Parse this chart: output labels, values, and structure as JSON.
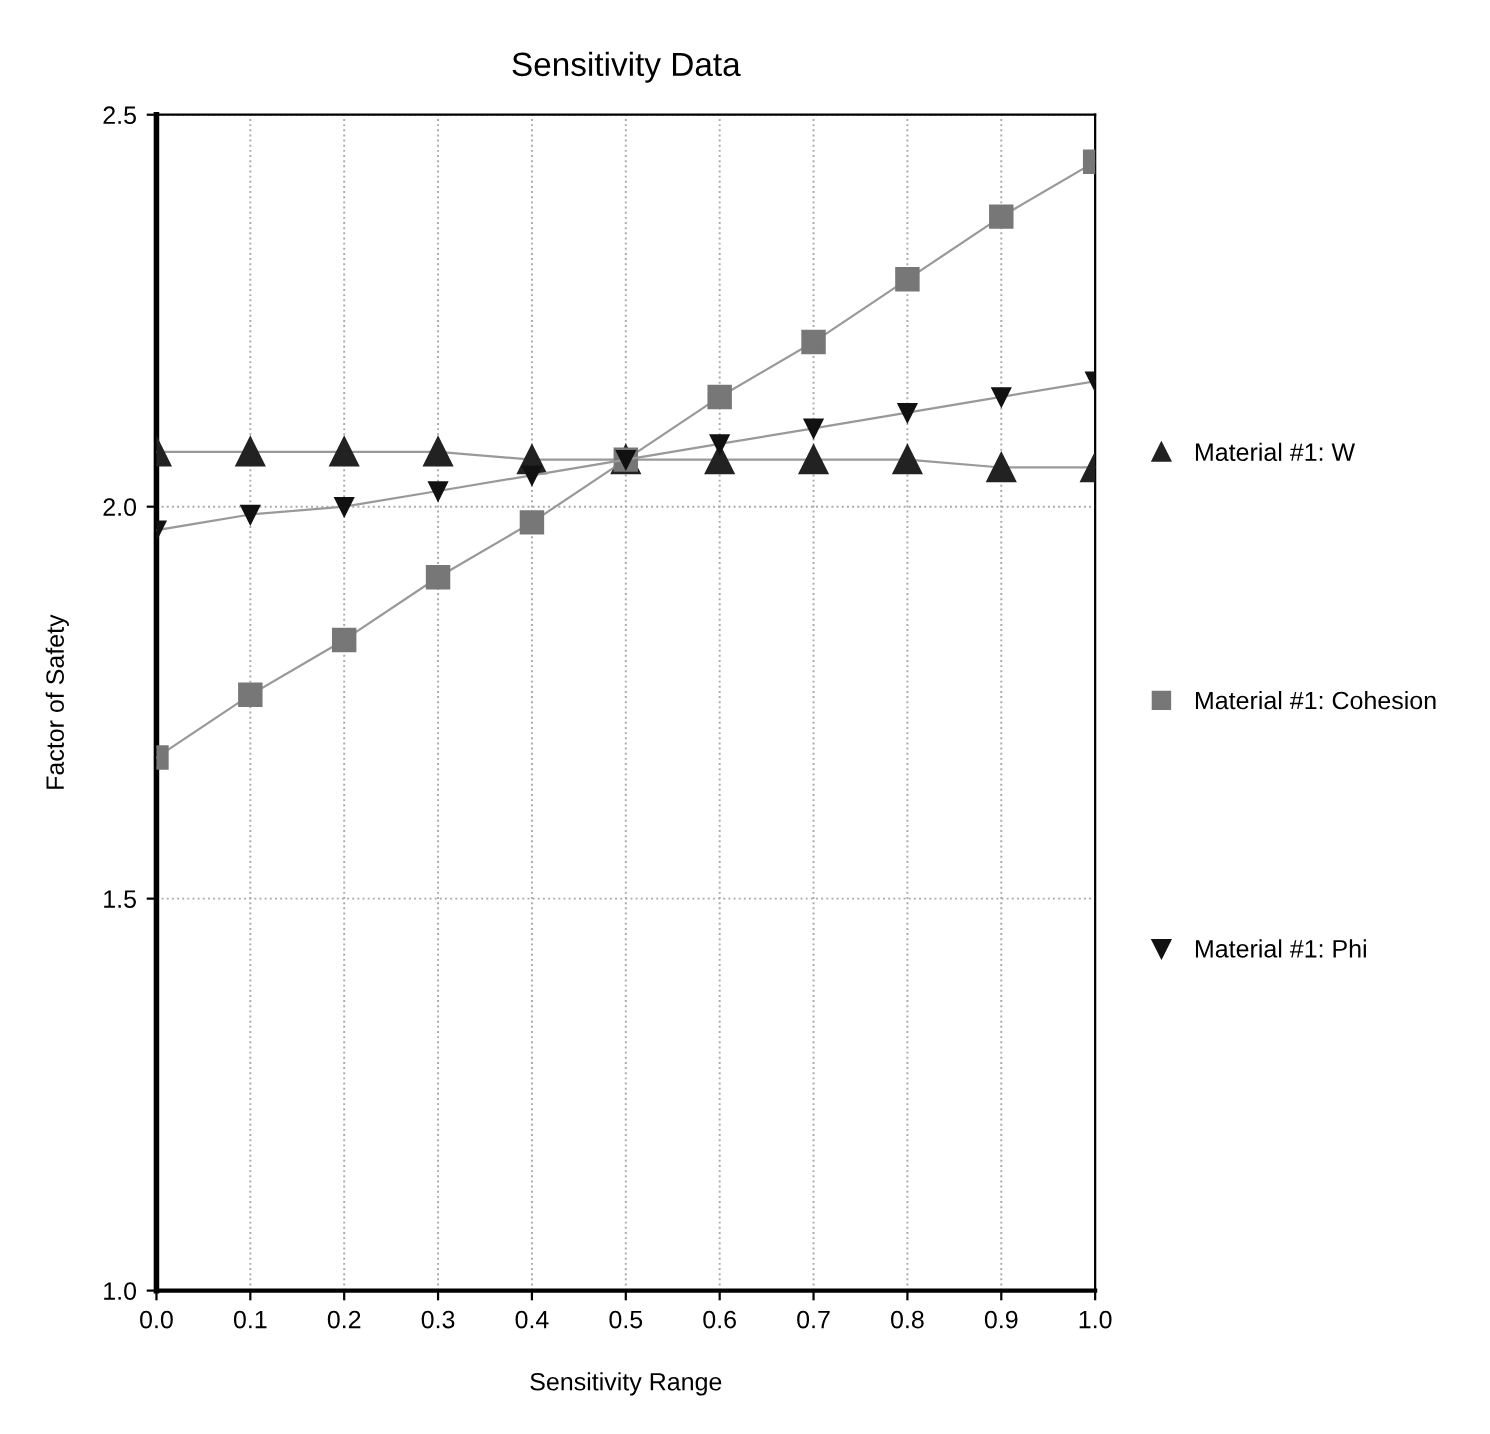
{
  "chart_data": {
    "type": "line",
    "title": "Sensitivity Data",
    "xlabel": "Sensitivity Range",
    "ylabel": "Factor of Safety",
    "x": [
      0.0,
      0.1,
      0.2,
      0.3,
      0.4,
      0.5,
      0.6,
      0.7,
      0.8,
      0.9,
      1.0
    ],
    "series": [
      {
        "name": "Material #1: W",
        "color": "#222222",
        "marker": "triangle",
        "values": [
          2.07,
          2.07,
          2.07,
          2.07,
          2.06,
          2.06,
          2.06,
          2.06,
          2.06,
          2.05,
          2.05
        ]
      },
      {
        "name": "Material #1: Cohesion",
        "color": "#777777",
        "marker": "square",
        "values": [
          1.68,
          1.76,
          1.83,
          1.91,
          1.98,
          2.06,
          2.14,
          2.21,
          2.29,
          2.37,
          2.44
        ]
      },
      {
        "name": "Material #1: Phi",
        "color": "#111111",
        "marker": "triangle_down",
        "values": [
          1.97,
          1.99,
          2.0,
          2.02,
          2.04,
          2.06,
          2.08,
          2.1,
          2.12,
          2.14,
          2.16
        ]
      }
    ],
    "xlim": [
      0.0,
      1.0
    ],
    "ylim": [
      1.0,
      2.5
    ],
    "xticks": [
      {
        "value": 0.0,
        "label": "0.0"
      },
      0.1,
      0.2,
      0.3,
      0.4,
      0.5,
      0.6,
      0.7,
      0.8,
      0.9,
      {
        "value": 1.0,
        "label": "1.0"
      }
    ],
    "yticks": [
      {
        "value": 1.0,
        "label": "1.0"
      },
      1.5,
      {
        "value": 2.0,
        "label": "2.0"
      },
      2.5
    ],
    "grid": true,
    "legend": "right",
    "line_style": "solid"
  }
}
